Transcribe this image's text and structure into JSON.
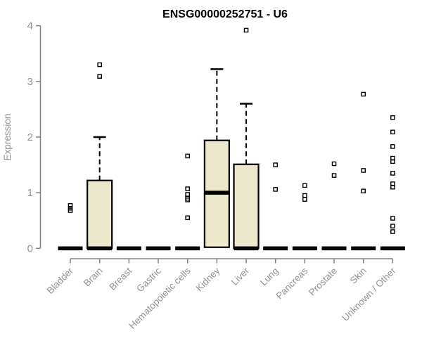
{
  "page": {
    "background": "#ffffff"
  },
  "chart_data": {
    "type": "boxplot",
    "title": "ENSG00000252751 - U6",
    "xlabel": "",
    "ylabel": "Expression",
    "ylim": [
      0,
      4
    ],
    "yticks": [
      0,
      1,
      2,
      3,
      4
    ],
    "grid": false,
    "legend": null,
    "categories": [
      "Bladder",
      "Brain",
      "Breast",
      "Gastric",
      "Hematopoietic cells",
      "Kidney",
      "Liver",
      "Lung",
      "Pancreas",
      "Prostate",
      "Skin",
      "Unknown / Other"
    ],
    "boxes": [
      {
        "label": "Bladder",
        "median": 0,
        "outliers": [
          0.68,
          0.72,
          0.77
        ]
      },
      {
        "label": "Brain",
        "median": 0,
        "q1": 0,
        "q3": 1.22,
        "whisker_high": 2.0,
        "whisker_low": 0,
        "outliers": [
          3.09,
          3.3
        ]
      },
      {
        "label": "Breast",
        "median": 0,
        "outliers": []
      },
      {
        "label": "Gastric",
        "median": 0,
        "outliers": []
      },
      {
        "label": "Hematopoietic cells",
        "median": 0,
        "outliers": [
          0.55,
          0.87,
          0.9,
          0.97,
          1.07,
          1.66
        ]
      },
      {
        "label": "Kidney",
        "median": 1.0,
        "q1": 0.02,
        "q3": 1.94,
        "whisker_high": 3.22,
        "whisker_low": 0.02,
        "outliers": []
      },
      {
        "label": "Liver",
        "median": 0,
        "q1": 0,
        "q3": 1.51,
        "whisker_high": 2.6,
        "whisker_low": 0,
        "outliers": [
          3.92
        ]
      },
      {
        "label": "Lung",
        "median": 0,
        "outliers": [
          1.06,
          1.5
        ]
      },
      {
        "label": "Pancreas",
        "median": 0,
        "outliers": [
          0.88,
          0.95,
          1.13
        ]
      },
      {
        "label": "Prostate",
        "median": 0,
        "outliers": [
          1.31,
          1.52
        ]
      },
      {
        "label": "Skin",
        "median": 0,
        "outliers": [
          1.03,
          1.4,
          2.77
        ]
      },
      {
        "label": "Unknown / Other",
        "median": 0,
        "outliers": [
          0.3,
          0.4,
          0.54,
          1.1,
          1.16,
          1.35,
          1.56,
          1.62,
          1.83,
          2.09,
          2.35
        ]
      }
    ],
    "colors": {
      "box_fill": "#ece8cc",
      "box_border": "#000000",
      "median": "#000000",
      "whisker": "#000000",
      "outlier": "#000000",
      "axis": "#808080",
      "tick_label": "#929292",
      "title": "#000000",
      "background": "#ffffff"
    }
  }
}
